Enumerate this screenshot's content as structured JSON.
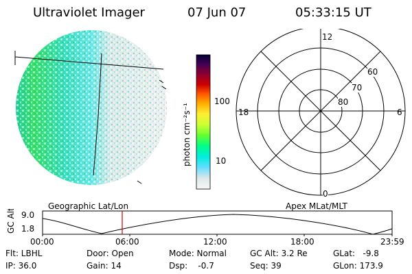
{
  "header": {
    "title": "Ultraviolet Imager",
    "date": "07 Jun 07",
    "time": "05:33:15 UT"
  },
  "colorbar": {
    "label": "photon cm⁻²s⁻¹",
    "ticks": [
      "100",
      "10"
    ],
    "colors": [
      "#000033",
      "#330066",
      "#660066",
      "#990033",
      "#cc0000",
      "#ee3300",
      "#ff8800",
      "#ffcc00",
      "#ffff33",
      "#ccff33",
      "#66ff33",
      "#00ff66",
      "#00ffcc",
      "#33ddff",
      "#99eeff",
      "#dddddd",
      "#f4f4f4"
    ]
  },
  "polar_plot": {
    "mlt_labels": [
      "12",
      "6",
      "18",
      "0"
    ],
    "lat_labels": [
      "60",
      "70",
      "80"
    ]
  },
  "timeline": {
    "left_label": "Geographic Lat/Lon",
    "right_label": "Apex MLat/MLT",
    "axis_title": "GC Alt",
    "y_ticks": [
      "9.0",
      "1.8"
    ],
    "x_ticks": [
      "00:00",
      "06:00",
      "12:00",
      "18:00",
      "23:59"
    ],
    "marker_color": "#cc0000"
  },
  "status": {
    "flt": "Flt: LBHL",
    "ip": "IP: 36.0",
    "door": "Door: Open",
    "gain": "Gain: 14",
    "mode": "Mode: Normal",
    "dsp": "Dsp:    -0.7",
    "gc_alt": "GC Alt: 3.2 Re",
    "seq": "Seq: 39",
    "glat": "GLat:   -9.8",
    "glon": "GLon: 173.9"
  }
}
